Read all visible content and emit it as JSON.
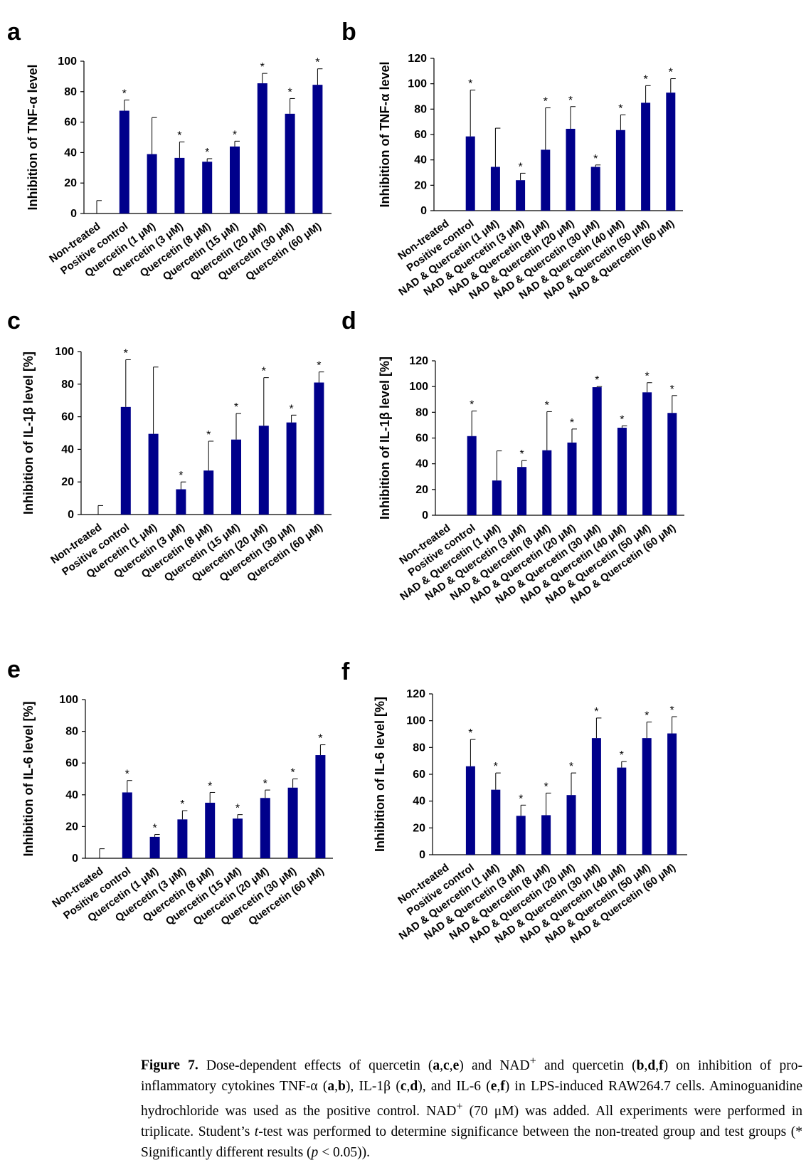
{
  "colors": {
    "bar": "#00008B",
    "axis": "#000000",
    "error": "#000000"
  },
  "chart_data": [
    {
      "panel": "a",
      "type": "bar",
      "ylabel": "Inhibition  of TNF-α  level",
      "ylim": [
        0,
        100
      ],
      "yticks": [
        0,
        20,
        40,
        60,
        80,
        100
      ],
      "categories": [
        "Non-treated",
        "Positive control",
        "Quercetin (1 μM)",
        "Quercetin (3 μM)",
        "Quercetin (8 μM)",
        "Quercetin (15 μM)",
        "Quercetin (20 μM)",
        "Quercetin (30 μM)",
        "Quercetin (60 μM)"
      ],
      "values": [
        0,
        67.5,
        39,
        36.5,
        34,
        44,
        85.5,
        65.5,
        84.5
      ],
      "errors": [
        8.5,
        7,
        24,
        10.5,
        2,
        3.5,
        6.5,
        10,
        10.5
      ],
      "significant": [
        false,
        true,
        false,
        true,
        true,
        true,
        true,
        true,
        true
      ]
    },
    {
      "panel": "b",
      "type": "bar",
      "ylabel": "Inhibition  of TNF-α  level",
      "ylim": [
        0,
        120
      ],
      "yticks": [
        0,
        20,
        40,
        60,
        80,
        100,
        120
      ],
      "categories": [
        "Non-treated",
        "Positive control",
        "NAD & Quercetin (1 μM)",
        "NAD & Quercetin (3 μM)",
        "NAD & Quercetin (8 μM)",
        "NAD & Quercetin (20 μM)",
        "NAD & Quercetin (30 μM)",
        "NAD & Quercetin (40 μM)",
        "NAD & Quercetin (50 μM)",
        "NAD & Quercetin (60 μM)"
      ],
      "values": [
        0,
        58.5,
        34.5,
        24,
        48,
        64.5,
        34.5,
        63.5,
        85,
        93
      ],
      "errors": [
        0,
        36.5,
        30.5,
        5.5,
        33,
        17.5,
        1.5,
        12,
        13.5,
        11
      ],
      "significant": [
        false,
        true,
        false,
        true,
        true,
        true,
        true,
        true,
        true,
        true
      ]
    },
    {
      "panel": "c",
      "type": "bar",
      "ylabel": "Inhibition  of IL-1β  level [%]",
      "ylim": [
        0,
        100
      ],
      "yticks": [
        0,
        20,
        40,
        60,
        80,
        100
      ],
      "categories": [
        "Non-treated",
        "Positive control",
        "Quercetin (1 μM)",
        "Quercetin (3 μM)",
        "Quercetin (8 μM)",
        "Quercetin (15 μM)",
        "Quercetin (20 μM)",
        "Quercetin (30 μM)",
        "Quercetin (60 μM)"
      ],
      "values": [
        0,
        66,
        49.5,
        15.5,
        27,
        46,
        54.5,
        56.5,
        81
      ],
      "errors": [
        5.5,
        29,
        41,
        4.5,
        18,
        16,
        29.5,
        4.5,
        6.5
      ],
      "significant": [
        false,
        true,
        false,
        true,
        true,
        true,
        true,
        true,
        true
      ]
    },
    {
      "panel": "d",
      "type": "bar",
      "ylabel": "Inhibition  of IL-1β  level [%]",
      "ylim": [
        0,
        120
      ],
      "yticks": [
        0,
        20,
        40,
        60,
        80,
        100,
        120
      ],
      "categories": [
        "Non-treated",
        "Positive control",
        "NAD & Quercetin (1 μM)",
        "NAD & Quercetin (3 μM)",
        "NAD & Quercetin (8 μM)",
        "NAD & Quercetin (20 μM)",
        "NAD & Quercetin (30 μM)",
        "NAD & Quercetin (40 μM)",
        "NAD & Quercetin (50 μM)",
        "NAD & Quercetin (60 μM)"
      ],
      "values": [
        0,
        61.5,
        27,
        37.5,
        50.5,
        56.5,
        99.5,
        68,
        95.5,
        79.5
      ],
      "errors": [
        0,
        19.5,
        23,
        5,
        30,
        10.5,
        0.5,
        1.5,
        7.5,
        13.5
      ],
      "significant": [
        false,
        true,
        false,
        true,
        true,
        true,
        true,
        true,
        true,
        true
      ]
    },
    {
      "panel": "e",
      "type": "bar",
      "ylabel": "Inhibition  of IL-6  level [%]",
      "ylim": [
        0,
        100
      ],
      "yticks": [
        0,
        20,
        40,
        60,
        80,
        100
      ],
      "categories": [
        "Non-treated",
        "Positive control",
        "Quercetin (1 μM)",
        "Quercetin (3 μM)",
        "Quercetin (8 μM)",
        "Quercetin (15 μM)",
        "Quercetin (20 μM)",
        "Quercetin (30 μM)",
        "Quercetin (60 μM)"
      ],
      "values": [
        0,
        41.5,
        13.5,
        24.5,
        35,
        25,
        38,
        44.5,
        65
      ],
      "errors": [
        6,
        7.5,
        1.5,
        5.5,
        6.5,
        2.5,
        5,
        5.5,
        6.5
      ],
      "significant": [
        false,
        true,
        true,
        true,
        true,
        true,
        true,
        true,
        true
      ]
    },
    {
      "panel": "f",
      "type": "bar",
      "ylabel": "Inhibition  of IL-6  level [%]",
      "ylim": [
        0,
        120
      ],
      "yticks": [
        0,
        20,
        40,
        60,
        80,
        100,
        120
      ],
      "categories": [
        "Non-treated",
        "Positive control",
        "NAD & Quercetin (1 μM)",
        "NAD & Quercetin (3 μM)",
        "NAD & Quercetin (8 μM)",
        "NAD & Quercetin (20 μM)",
        "NAD & Quercetin (30 μM)",
        "NAD & Quercetin (40 μM)",
        "NAD & Quercetin (50 μM)",
        "NAD & Quercetin (60 μM)"
      ],
      "values": [
        0,
        66,
        48.5,
        29,
        29.5,
        44.5,
        87,
        65,
        87,
        90.5
      ],
      "errors": [
        0,
        20,
        12.5,
        8,
        16.5,
        16.5,
        15,
        4.5,
        12,
        12.5
      ],
      "significant": [
        false,
        true,
        true,
        true,
        true,
        true,
        true,
        true,
        true,
        true
      ]
    }
  ],
  "significance_marker": "*",
  "caption": {
    "label": "Figure 7.",
    "parts": [
      {
        "t": " Dose-dependent effects of quercetin ("
      },
      {
        "t": "a",
        "b": true
      },
      {
        "t": ","
      },
      {
        "t": "c",
        "b": true
      },
      {
        "t": ","
      },
      {
        "t": "e",
        "b": true
      },
      {
        "t": ") and NAD"
      },
      {
        "t": "+",
        "sup": true
      },
      {
        "t": " and quercetin ("
      },
      {
        "t": "b",
        "b": true
      },
      {
        "t": ","
      },
      {
        "t": "d",
        "b": true
      },
      {
        "t": ","
      },
      {
        "t": "f",
        "b": true
      },
      {
        "t": ") on inhibition of pro-inflammatory cytokines TNF-α ("
      },
      {
        "t": "a",
        "b": true
      },
      {
        "t": ","
      },
      {
        "t": "b",
        "b": true
      },
      {
        "t": "), IL-1β ("
      },
      {
        "t": "c",
        "b": true
      },
      {
        "t": ","
      },
      {
        "t": "d",
        "b": true
      },
      {
        "t": "), and IL-6 ("
      },
      {
        "t": "e",
        "b": true
      },
      {
        "t": ","
      },
      {
        "t": "f",
        "b": true
      },
      {
        "t": ") in LPS-induced RAW264.7 cells. Aminoguanidine hydrochloride was used as the positive control. NAD"
      },
      {
        "t": "+",
        "sup": true
      },
      {
        "t": " (70 μM) was added. All experiments were performed in triplicate. Student’s "
      },
      {
        "t": "t",
        "i": true
      },
      {
        "t": "-test was performed to determine significance between the non-treated group and test groups (* Significantly different results ("
      },
      {
        "t": "p",
        "i": true
      },
      {
        "t": " < 0.05))."
      }
    ]
  }
}
